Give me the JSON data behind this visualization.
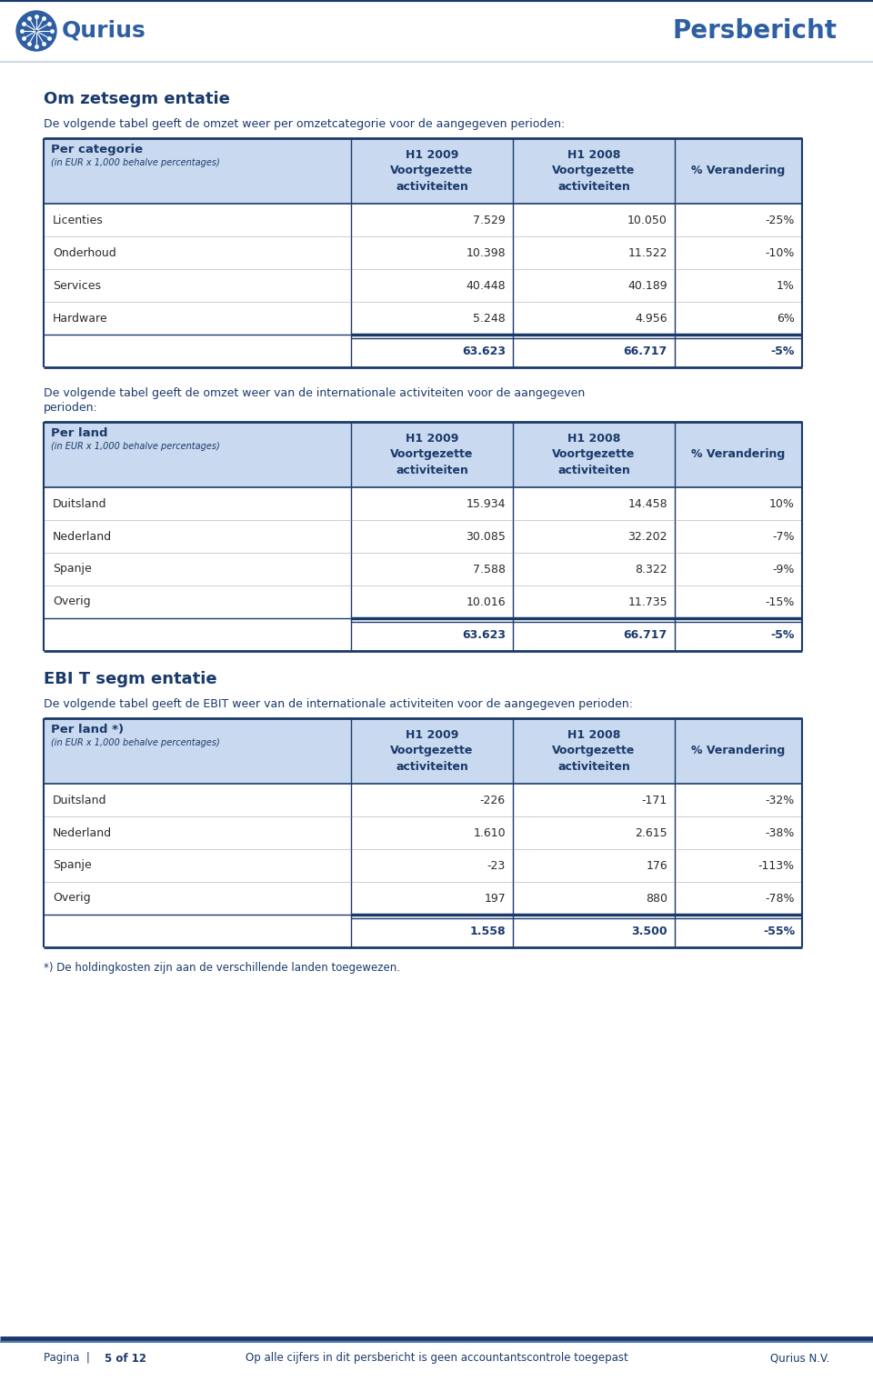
{
  "page_bg": "#ffffff",
  "blue_dark": "#1a3a6b",
  "blue_medium": "#2e5fa3",
  "blue_light": "#c9d9ef",
  "text_dark": "#1a3a6b",
  "text_body": "#2a2a2a",
  "section1_title": "Om zetsegm entatie",
  "section1_desc": "De volgende tabel geeft de omzet weer per omzetcategorie voor de aangegeven perioden:",
  "table1_col0_header": "Per categorie",
  "table1_col0_sub": "(in EUR x 1,000 behalve percentages)",
  "table1_col1_header": "H1 2009\nVoortgezette\nactiviteiten",
  "table1_col2_header": "H1 2008\nVoortgezette\nactiviteiten",
  "table1_col3_header": "% Verandering",
  "table1_rows": [
    [
      "Licenties",
      "7.529",
      "10.050",
      "-25%"
    ],
    [
      "Onderhoud",
      "10.398",
      "11.522",
      "-10%"
    ],
    [
      "Services",
      "40.448",
      "40.189",
      "1%"
    ],
    [
      "Hardware",
      "5.248",
      "4.956",
      "6%"
    ],
    [
      "",
      "63.623",
      "66.717",
      "-5%"
    ]
  ],
  "section2_desc_line1": "De volgende tabel geeft de omzet weer van de internationale activiteiten voor de aangegeven",
  "section2_desc_line2": "perioden:",
  "table2_col0_header": "Per land",
  "table2_col0_sub": "(in EUR x 1,000 behalve percentages)",
  "table2_col1_header": "H1 2009\nVoortgezette\nactiviteiten",
  "table2_col2_header": "H1 2008\nVoortgezette\nactiviteiten",
  "table2_col3_header": "% Verandering",
  "table2_rows": [
    [
      "Duitsland",
      "15.934",
      "14.458",
      "10%"
    ],
    [
      "Nederland",
      "30.085",
      "32.202",
      "-7%"
    ],
    [
      "Spanje",
      "7.588",
      "8.322",
      "-9%"
    ],
    [
      "Overig",
      "10.016",
      "11.735",
      "-15%"
    ],
    [
      "",
      "63.623",
      "66.717",
      "-5%"
    ]
  ],
  "section3_title": "EBI T segm entatie",
  "section3_desc": "De volgende tabel geeft de EBIT weer van de internationale activiteiten voor de aangegeven perioden:",
  "table3_col0_header": "Per land *)",
  "table3_col0_sub": "(in EUR x 1,000 behalve percentages)",
  "table3_col1_header": "H1 2009\nVoortgezette\nactiviteiten",
  "table3_col2_header": "H1 2008\nVoortgezette\nactiviteiten",
  "table3_col3_header": "% Verandering",
  "table3_rows": [
    [
      "Duitsland",
      "-226",
      "-171",
      "-32%"
    ],
    [
      "Nederland",
      "1.610",
      "2.615",
      "-38%"
    ],
    [
      "Spanje",
      "-23",
      "176",
      "-113%"
    ],
    [
      "Overig",
      "197",
      "880",
      "-78%"
    ],
    [
      "",
      "1.558",
      "3.500",
      "-55%"
    ]
  ],
  "footnote": "*) De holdingkosten zijn aan de verschillende landen toegewezen.",
  "footer_page": "Pagina",
  "footer_page_num": "5 of 12",
  "footer_center": "Op alle cijfers in dit persbericht is geen accountantscontrole toegepast",
  "footer_right": "Qurius N.V."
}
